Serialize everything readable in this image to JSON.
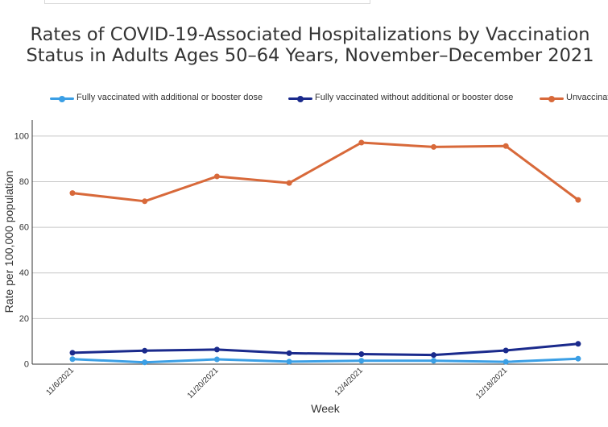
{
  "chart_data": {
    "type": "line",
    "title_lines": [
      "Rates of COVID-19-Associated Hospitalizations by Vaccination",
      "Status in Adults Ages 50–64 Years, November–December 2021"
    ],
    "xlabel": "Week",
    "ylabel": "Rate per 100,000 population",
    "ylim": [
      0,
      107
    ],
    "yticks": [
      0,
      20,
      40,
      60,
      80,
      100
    ],
    "xticks": [
      "11/6/2021",
      "11/20/2021",
      "12/4/2021",
      "12/18/2021"
    ],
    "grid": true,
    "legend_position": "top",
    "categories": [
      "11/6/2021",
      "11/13/2021",
      "11/20/2021",
      "11/27/2021",
      "12/4/2021",
      "12/11/2021",
      "12/18/2021",
      "12/25/2021"
    ],
    "series": [
      {
        "name": "Fully vaccinated with additional or booster dose",
        "color": "#3b9fe5",
        "values": [
          2.2,
          0.8,
          2.1,
          1.1,
          1.5,
          1.5,
          1.0,
          2.4
        ]
      },
      {
        "name": "Fully vaccinated without additional or booster dose",
        "color": "#1a2a8c",
        "values": [
          5.0,
          5.9,
          6.4,
          4.8,
          4.4,
          4.0,
          6.0,
          8.9
        ]
      },
      {
        "name": "Unvaccinated",
        "color": "#d8693a",
        "values": [
          75.0,
          71.4,
          82.3,
          79.4,
          97.1,
          95.2,
          95.6,
          72.0
        ]
      }
    ]
  }
}
